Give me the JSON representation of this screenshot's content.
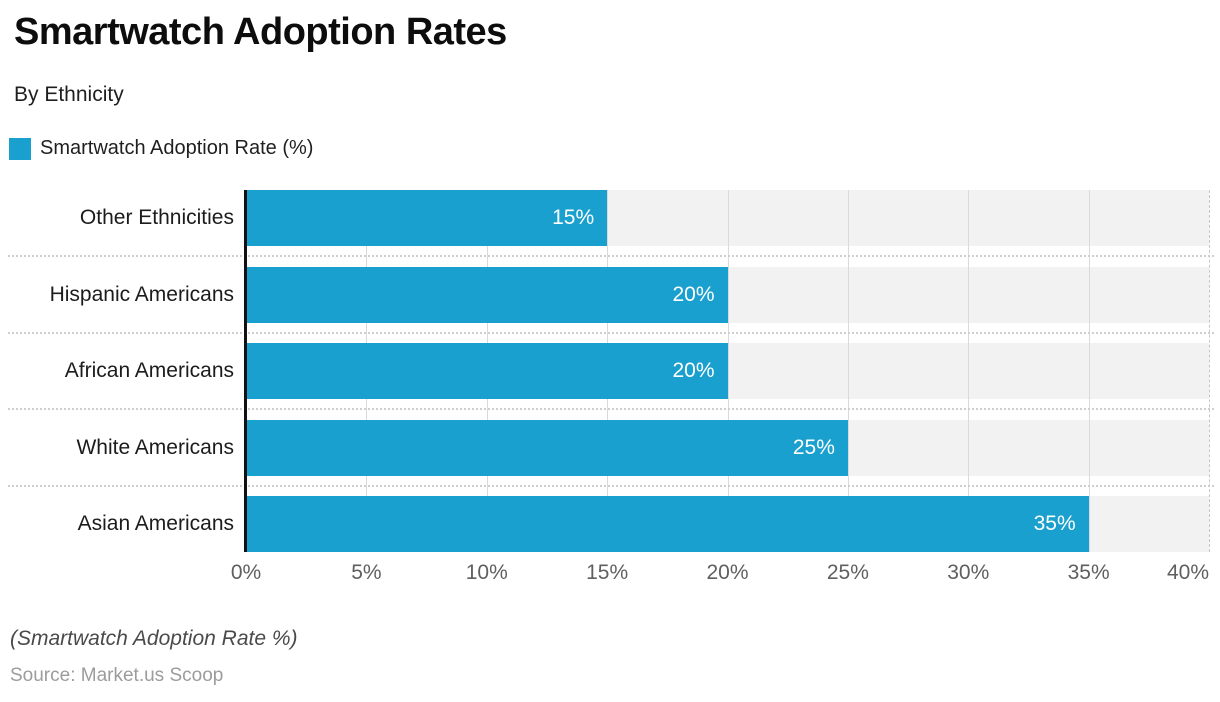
{
  "header": {
    "title": "Smartwatch Adoption Rates",
    "subtitle": "By Ethnicity"
  },
  "legend": {
    "label": "Smartwatch Adoption Rate (%)"
  },
  "colors": {
    "bar": "#1aa0ce",
    "band": "#f2f2f2",
    "gridline": "#dadada",
    "axis": "#111111"
  },
  "chart_data": {
    "type": "bar",
    "orientation": "horizontal",
    "title": "Smartwatch Adoption Rates",
    "subtitle": "By Ethnicity",
    "series_name": "Smartwatch Adoption Rate (%)",
    "categories": [
      "Other Ethnicities",
      "Hispanic Americans",
      "African Americans",
      "White Americans",
      "Asian Americans"
    ],
    "values": [
      15,
      20,
      20,
      25,
      35
    ],
    "value_labels": [
      "15%",
      "20%",
      "20%",
      "25%",
      "35%"
    ],
    "xlim": [
      0,
      40
    ],
    "x_ticks": [
      "0%",
      "5%",
      "10%",
      "15%",
      "20%",
      "25%",
      "30%",
      "35%",
      "40%"
    ],
    "grid": true,
    "legend_position": "top-left"
  },
  "footer": {
    "note": "(Smartwatch Adoption Rate %)",
    "source": "Source: Market.us Scoop"
  }
}
